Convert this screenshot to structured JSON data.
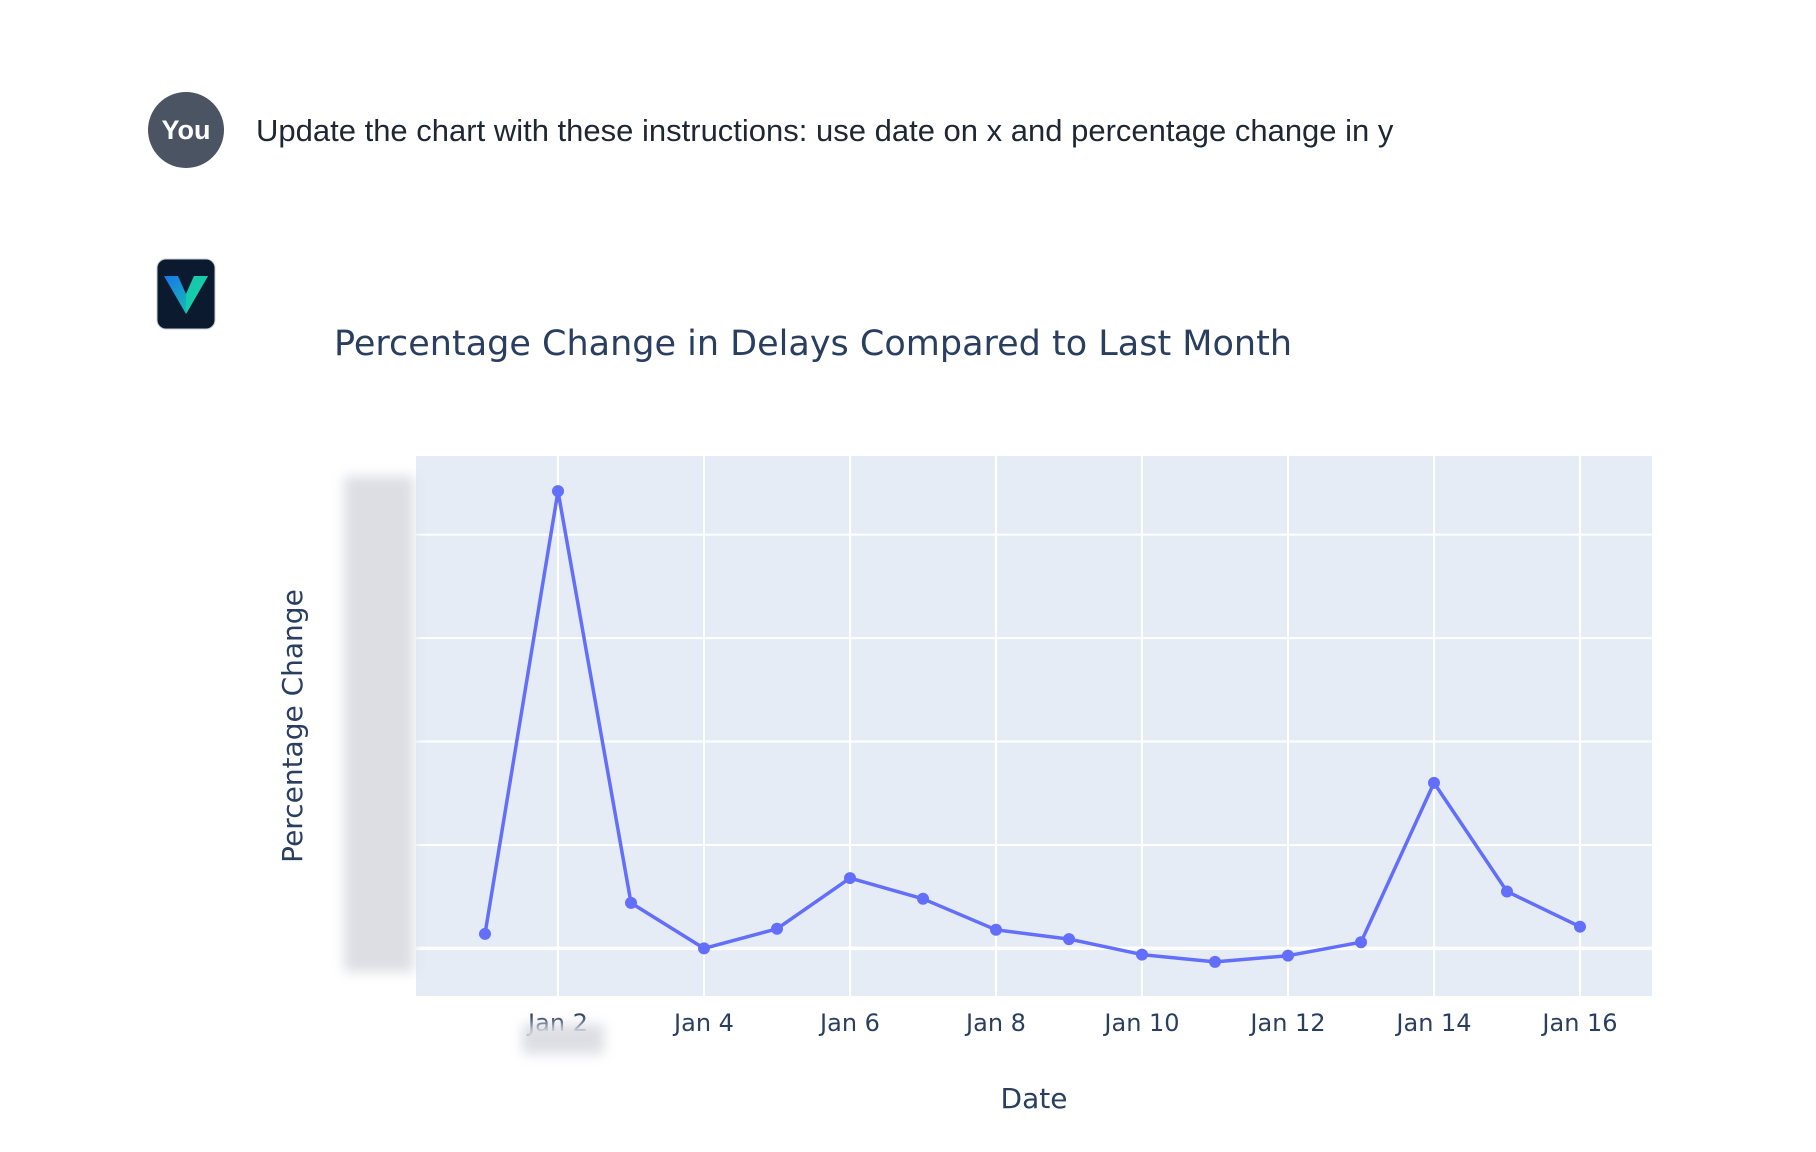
{
  "conversation": {
    "user": {
      "avatar_label": "You",
      "message": "Update the chart with these instructions: use date on x and percentage change in y"
    },
    "assistant": {
      "logo_icon": "v-logo-icon",
      "logo_colors": [
        "#0b1a2e",
        "#15d1a6",
        "#1877e8"
      ]
    }
  },
  "chart_data": {
    "type": "line",
    "title": "Percentage Change in Delays Compared to Last Month",
    "xlabel": "Date",
    "ylabel": "Percentage Change",
    "x": [
      "Jan 1",
      "Jan 2",
      "Jan 3",
      "Jan 4",
      "Jan 5",
      "Jan 6",
      "Jan 7",
      "Jan 8",
      "Jan 9",
      "Jan 10",
      "Jan 11",
      "Jan 12",
      "Jan 13",
      "Jan 14",
      "Jan 15",
      "Jan 16"
    ],
    "x_ticks": [
      "Jan 2",
      "Jan 4",
      "Jan 6",
      "Jan 8",
      "Jan 10",
      "Jan 12",
      "Jan 14",
      "Jan 16"
    ],
    "series": [
      {
        "values": [
          7,
          221,
          22,
          0,
          9.5,
          34,
          24,
          9,
          4.5,
          -3,
          -6.5,
          -3.5,
          3,
          80,
          27.5,
          10.5
        ]
      }
    ],
    "ylim": [
      -23,
      238
    ],
    "y_gridlines": [
      0,
      50,
      100,
      150,
      200
    ],
    "grid": true,
    "legend": "none",
    "colors": {
      "line": "#636efa",
      "plot_background": "#e5ecf6",
      "grid": "#ffffff",
      "text": "#2a3f5f"
    }
  }
}
